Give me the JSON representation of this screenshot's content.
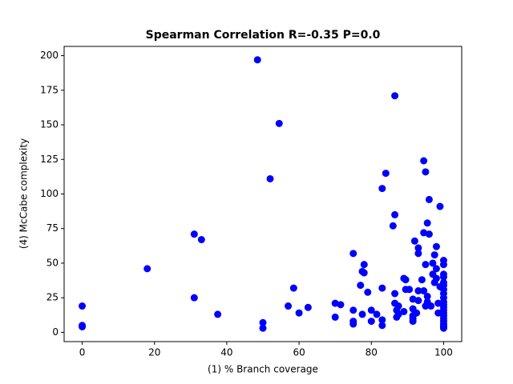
{
  "chart_data": {
    "type": "scatter",
    "title": "Spearman Correlation R=-0.35 P=0.0",
    "x_label": "(1) % Branch coverage",
    "y_label": "(4) McCabe complexity",
    "color": "#0000ff",
    "xlim": [
      -5,
      105
    ],
    "ylim": [
      -6.7,
      206.7
    ],
    "xticks": [
      0,
      20,
      40,
      60,
      80,
      100
    ],
    "yticks": [
      0,
      25,
      50,
      75,
      100,
      125,
      150,
      175,
      200
    ],
    "x": [
      0,
      0,
      0,
      18,
      31,
      33,
      31,
      37.5,
      48.5,
      54.5,
      52,
      50,
      50,
      57,
      58.5,
      60,
      62.5,
      70,
      71.5,
      70,
      75,
      75,
      75,
      75,
      77,
      78,
      78,
      77.5,
      79,
      77.5,
      80,
      80,
      81.5,
      83,
      84,
      83,
      83,
      83,
      86.5,
      86.5,
      86,
      86.5,
      86.5,
      87,
      87.5,
      87,
      87.5,
      89,
      89.5,
      89.5,
      90.5,
      89,
      91.5,
      91.5,
      91.5,
      91.5,
      91.5,
      92,
      93,
      93,
      93,
      93,
      92.5,
      94,
      94.5,
      95,
      94.5,
      95.5,
      96,
      95,
      94.5,
      95.5,
      95.5,
      95,
      96,
      97,
      97.5,
      97,
      97.5,
      98,
      98,
      98,
      96.5,
      99,
      100,
      100,
      100,
      100,
      100,
      100,
      100,
      100,
      100,
      100,
      100,
      100,
      100,
      100,
      100,
      100,
      100,
      100,
      100,
      100,
      100,
      99,
      98.5,
      98.5
    ],
    "values": [
      19,
      5,
      4,
      46,
      71,
      67,
      25,
      13,
      197,
      151,
      111,
      7,
      3,
      19,
      32,
      14,
      18,
      21,
      20,
      11,
      57,
      16,
      8,
      6,
      34,
      49,
      43,
      44,
      29,
      13,
      16,
      8,
      13,
      104,
      115,
      32,
      9,
      5,
      171,
      85,
      77,
      28,
      21,
      16,
      19,
      11,
      13,
      39,
      38,
      31,
      31,
      15,
      24,
      17,
      12,
      10,
      8,
      66,
      61,
      57,
      30,
      23,
      14,
      38,
      124,
      116,
      72,
      79,
      71,
      49,
      30,
      26,
      22,
      19,
      96,
      50,
      56,
      42,
      36,
      62,
      39,
      46,
      19,
      91,
      52,
      49,
      42,
      40,
      36,
      34,
      31,
      28,
      25,
      22,
      20,
      18,
      16,
      14,
      12,
      10,
      8,
      6,
      5,
      4,
      3,
      33,
      21,
      14
    ]
  }
}
